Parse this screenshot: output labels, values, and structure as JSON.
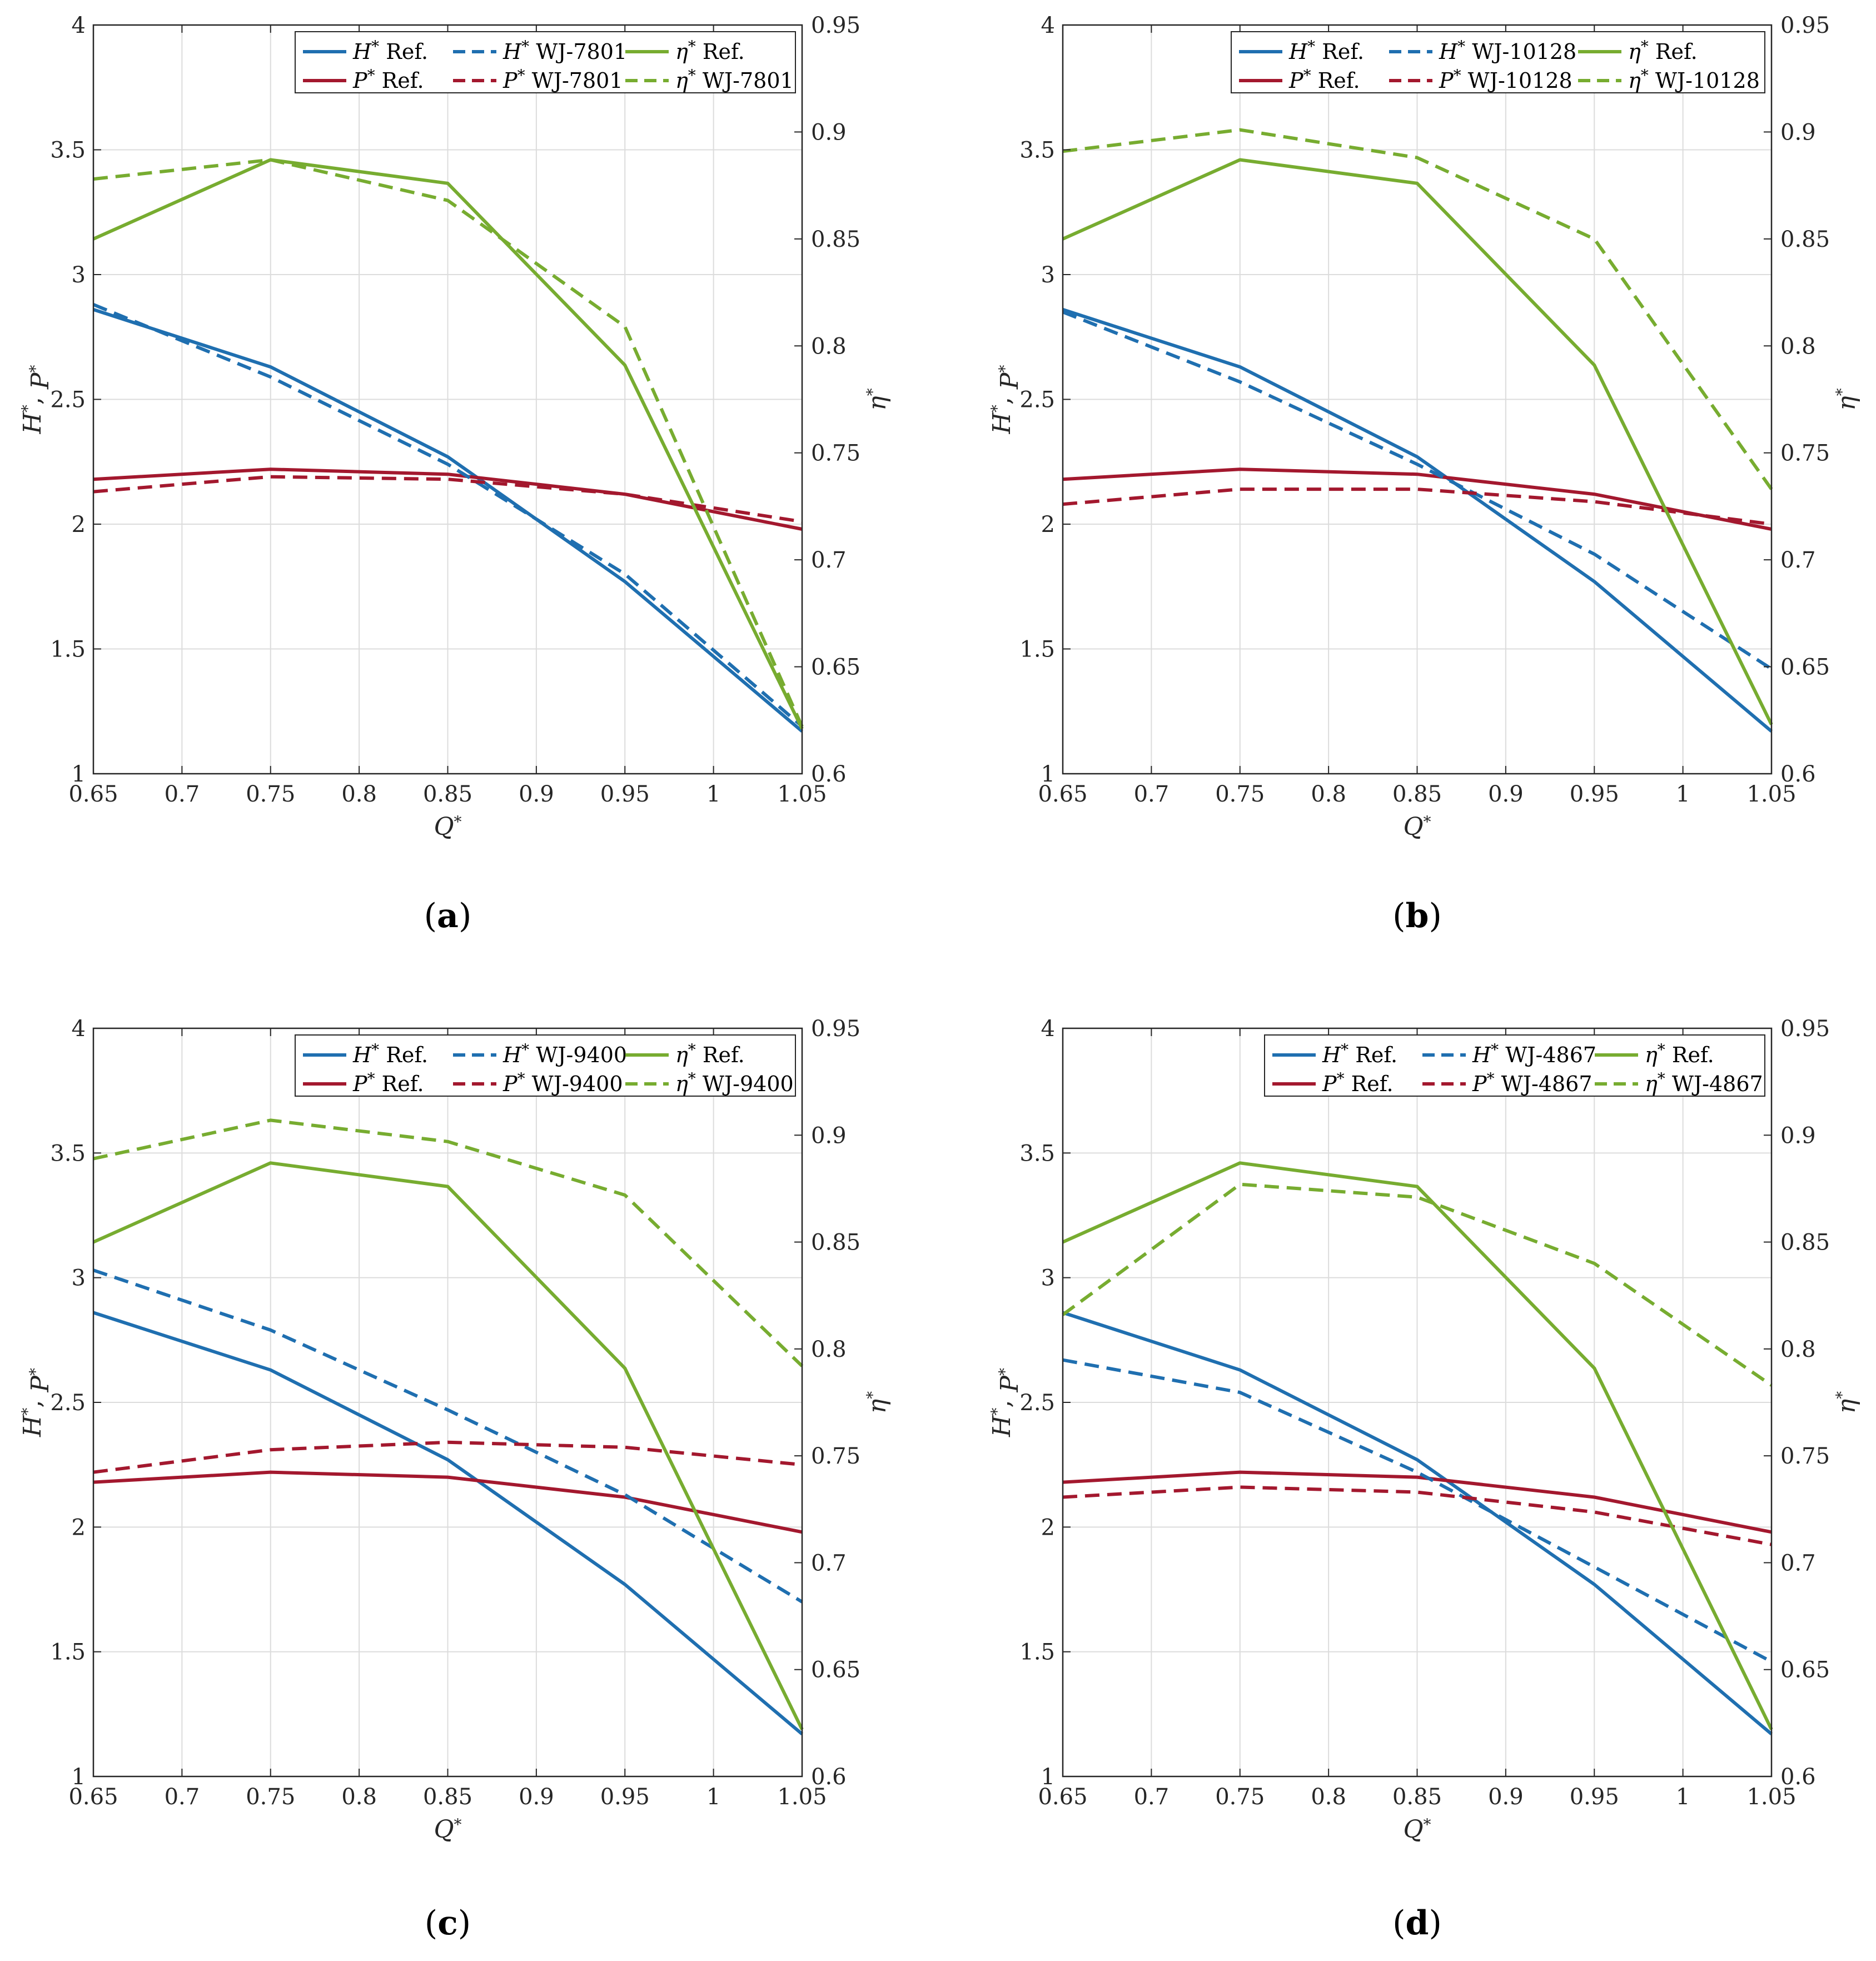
{
  "colors": {
    "head": "#1f6fb0",
    "power": "#a3182e",
    "efficiency": "#77ac30",
    "grid": "#dcdcdc",
    "axis": "#262626"
  },
  "chart_data": [
    {
      "type": "line",
      "panel_label": "(a)",
      "design": "WJ-7801",
      "xlabel": "Q*",
      "ylabel_left": "H*, P*",
      "ylabel_right": "η*",
      "x": [
        0.65,
        0.75,
        0.85,
        0.95,
        1.05
      ],
      "xlim": [
        0.65,
        1.05
      ],
      "xticks": [
        "0.65",
        "0.7",
        "0.75",
        "0.8",
        "0.85",
        "0.9",
        "0.95",
        "1",
        "1.05"
      ],
      "ylim_left": [
        1,
        4
      ],
      "yticks_left": [
        "1",
        "1.5",
        "2",
        "2.5",
        "3",
        "3.5",
        "4"
      ],
      "ylim_right": [
        0.6,
        0.95
      ],
      "yticks_right": [
        "0.6",
        "0.65",
        "0.7",
        "0.75",
        "0.8",
        "0.85",
        "0.9",
        "0.95"
      ],
      "grid": true,
      "legend_position": "top-right",
      "series": [
        {
          "name": "H* Ref.",
          "symbol": "H",
          "tag": "Ref.",
          "axis": "left",
          "style": "solid",
          "color": "head",
          "values": [
            2.86,
            2.63,
            2.27,
            1.77,
            1.17
          ]
        },
        {
          "name": "P* Ref.",
          "symbol": "P",
          "tag": "Ref.",
          "axis": "left",
          "style": "solid",
          "color": "power",
          "values": [
            2.18,
            2.22,
            2.2,
            2.12,
            1.98
          ]
        },
        {
          "name": "H* WJ-7801",
          "symbol": "H",
          "tag": "WJ-7801",
          "axis": "left",
          "style": "dashed",
          "color": "head",
          "values": [
            2.88,
            2.59,
            2.24,
            1.8,
            1.19
          ]
        },
        {
          "name": "P* WJ-7801",
          "symbol": "P",
          "tag": "WJ-7801",
          "axis": "left",
          "style": "dashed",
          "color": "power",
          "values": [
            2.13,
            2.19,
            2.18,
            2.12,
            2.01
          ]
        },
        {
          "name": "η* Ref.",
          "symbol": "η",
          "tag": "Ref.",
          "axis": "right",
          "style": "solid",
          "color": "efficiency",
          "values": [
            0.85,
            0.887,
            0.876,
            0.791,
            0.621
          ]
        },
        {
          "name": "η* WJ-7801",
          "symbol": "η",
          "tag": "WJ-7801",
          "axis": "right",
          "style": "dashed",
          "color": "efficiency",
          "values": [
            0.878,
            0.887,
            0.868,
            0.809,
            0.622
          ]
        }
      ]
    },
    {
      "type": "line",
      "panel_label": "(b)",
      "design": "WJ-10128",
      "xlabel": "Q*",
      "ylabel_left": "H*, P*",
      "ylabel_right": "η*",
      "x": [
        0.65,
        0.75,
        0.85,
        0.95,
        1.05
      ],
      "xlim": [
        0.65,
        1.05
      ],
      "xticks": [
        "0.65",
        "0.7",
        "0.75",
        "0.8",
        "0.85",
        "0.9",
        "0.95",
        "1",
        "1.05"
      ],
      "ylim_left": [
        1,
        4
      ],
      "yticks_left": [
        "1",
        "1.5",
        "2",
        "2.5",
        "3",
        "3.5",
        "4"
      ],
      "ylim_right": [
        0.6,
        0.95
      ],
      "yticks_right": [
        "0.6",
        "0.65",
        "0.7",
        "0.75",
        "0.8",
        "0.85",
        "0.9",
        "0.95"
      ],
      "grid": true,
      "legend_position": "top-right",
      "series": [
        {
          "name": "H* Ref.",
          "symbol": "H",
          "tag": "Ref.",
          "axis": "left",
          "style": "solid",
          "color": "head",
          "values": [
            2.86,
            2.63,
            2.27,
            1.77,
            1.17
          ]
        },
        {
          "name": "P* Ref.",
          "symbol": "P",
          "tag": "Ref.",
          "axis": "left",
          "style": "solid",
          "color": "power",
          "values": [
            2.18,
            2.22,
            2.2,
            2.12,
            1.98
          ]
        },
        {
          "name": "H* WJ-10128",
          "symbol": "H",
          "tag": "WJ-10128",
          "axis": "left",
          "style": "dashed",
          "color": "head",
          "values": [
            2.85,
            2.57,
            2.24,
            1.88,
            1.42
          ]
        },
        {
          "name": "P* WJ-10128",
          "symbol": "P",
          "tag": "WJ-10128",
          "axis": "left",
          "style": "dashed",
          "color": "power",
          "values": [
            2.08,
            2.14,
            2.14,
            2.09,
            2.0
          ]
        },
        {
          "name": "η* Ref.",
          "symbol": "η",
          "tag": "Ref.",
          "axis": "right",
          "style": "solid",
          "color": "efficiency",
          "values": [
            0.85,
            0.887,
            0.876,
            0.791,
            0.623
          ]
        },
        {
          "name": "η* WJ-10128",
          "symbol": "η",
          "tag": "WJ-10128",
          "axis": "right",
          "style": "dashed",
          "color": "efficiency",
          "values": [
            0.891,
            0.901,
            0.888,
            0.85,
            0.733
          ]
        }
      ]
    },
    {
      "type": "line",
      "panel_label": "(c)",
      "design": "WJ-9400",
      "xlabel": "Q*",
      "ylabel_left": "H*, P*",
      "ylabel_right": "η*",
      "x": [
        0.65,
        0.75,
        0.85,
        0.95,
        1.05
      ],
      "xlim": [
        0.65,
        1.05
      ],
      "xticks": [
        "0.65",
        "0.7",
        "0.75",
        "0.8",
        "0.85",
        "0.9",
        "0.95",
        "1",
        "1.05"
      ],
      "ylim_left": [
        1,
        4
      ],
      "yticks_left": [
        "1",
        "1.5",
        "2",
        "2.5",
        "3",
        "3.5",
        "4"
      ],
      "ylim_right": [
        0.6,
        0.95
      ],
      "yticks_right": [
        "0.6",
        "0.65",
        "0.7",
        "0.75",
        "0.8",
        "0.85",
        "0.9",
        "0.95"
      ],
      "grid": true,
      "legend_position": "top-right",
      "series": [
        {
          "name": "H* Ref.",
          "symbol": "H",
          "tag": "Ref.",
          "axis": "left",
          "style": "solid",
          "color": "head",
          "values": [
            2.86,
            2.63,
            2.27,
            1.77,
            1.17
          ]
        },
        {
          "name": "P* Ref.",
          "symbol": "P",
          "tag": "Ref.",
          "axis": "left",
          "style": "solid",
          "color": "power",
          "values": [
            2.18,
            2.22,
            2.2,
            2.12,
            1.98
          ]
        },
        {
          "name": "H* WJ-9400",
          "symbol": "H",
          "tag": "WJ-9400",
          "axis": "left",
          "style": "dashed",
          "color": "head",
          "values": [
            3.03,
            2.79,
            2.47,
            2.13,
            1.7
          ]
        },
        {
          "name": "P* WJ-9400",
          "symbol": "P",
          "tag": "WJ-9400",
          "axis": "left",
          "style": "dashed",
          "color": "power",
          "values": [
            2.22,
            2.31,
            2.34,
            2.32,
            2.25
          ]
        },
        {
          "name": "η* Ref.",
          "symbol": "η",
          "tag": "Ref.",
          "axis": "right",
          "style": "solid",
          "color": "efficiency",
          "values": [
            0.85,
            0.887,
            0.876,
            0.791,
            0.622
          ]
        },
        {
          "name": "η* WJ-9400",
          "symbol": "η",
          "tag": "WJ-9400",
          "axis": "right",
          "style": "dashed",
          "color": "efficiency",
          "values": [
            0.889,
            0.907,
            0.897,
            0.872,
            0.792
          ]
        }
      ]
    },
    {
      "type": "line",
      "panel_label": "(d)",
      "design": "WJ-4867",
      "xlabel": "Q*",
      "ylabel_left": "H*, P*",
      "ylabel_right": "η*",
      "x": [
        0.65,
        0.75,
        0.85,
        0.95,
        1.05
      ],
      "xlim": [
        0.65,
        1.05
      ],
      "xticks": [
        "0.65",
        "0.7",
        "0.75",
        "0.8",
        "0.85",
        "0.9",
        "0.95",
        "1",
        "1.05"
      ],
      "ylim_left": [
        1,
        4
      ],
      "yticks_left": [
        "1",
        "1.5",
        "2",
        "2.5",
        "3",
        "3.5",
        "4"
      ],
      "ylim_right": [
        0.6,
        0.95
      ],
      "yticks_right": [
        "0.6",
        "0.65",
        "0.7",
        "0.75",
        "0.8",
        "0.85",
        "0.9",
        "0.95"
      ],
      "grid": true,
      "legend_position": "top-right",
      "series": [
        {
          "name": "H* Ref.",
          "symbol": "H",
          "tag": "Ref.",
          "axis": "left",
          "style": "solid",
          "color": "head",
          "values": [
            2.86,
            2.63,
            2.27,
            1.77,
            1.17
          ]
        },
        {
          "name": "P* Ref.",
          "symbol": "P",
          "tag": "Ref.",
          "axis": "left",
          "style": "solid",
          "color": "power",
          "values": [
            2.18,
            2.22,
            2.2,
            2.12,
            1.98
          ]
        },
        {
          "name": "H* WJ-4867",
          "symbol": "H",
          "tag": "WJ-4867",
          "axis": "left",
          "style": "dashed",
          "color": "head",
          "values": [
            2.67,
            2.54,
            2.22,
            1.84,
            1.46
          ]
        },
        {
          "name": "P* WJ-4867",
          "symbol": "P",
          "tag": "WJ-4867",
          "axis": "left",
          "style": "dashed",
          "color": "power",
          "values": [
            2.12,
            2.16,
            2.14,
            2.06,
            1.93
          ]
        },
        {
          "name": "η* Ref.",
          "symbol": "η",
          "tag": "Ref.",
          "axis": "right",
          "style": "solid",
          "color": "efficiency",
          "values": [
            0.85,
            0.887,
            0.876,
            0.791,
            0.622
          ]
        },
        {
          "name": "η* WJ-4867",
          "symbol": "η",
          "tag": "WJ-4867",
          "axis": "right",
          "style": "dashed",
          "color": "efficiency",
          "values": [
            0.816,
            0.877,
            0.871,
            0.84,
            0.783
          ]
        }
      ]
    }
  ]
}
